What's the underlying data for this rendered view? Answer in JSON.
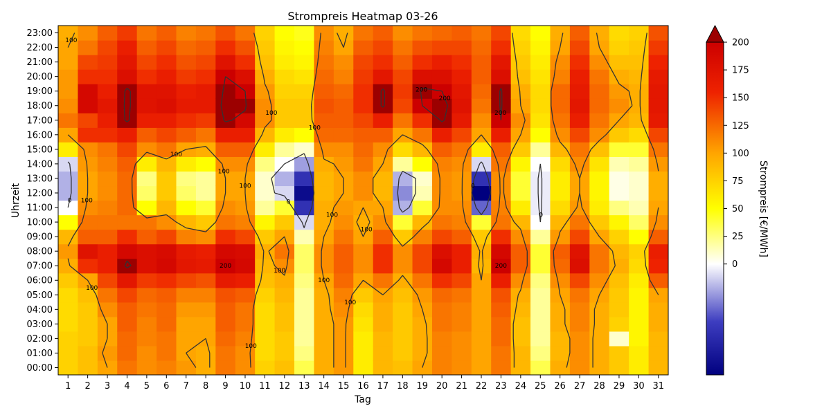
{
  "chart_data": {
    "type": "heatmap",
    "title": "Strompreis Heatmap 03-26",
    "xlabel": "Tag",
    "ylabel": "Uhrzeit",
    "x_categories": [
      "1",
      "2",
      "3",
      "4",
      "5",
      "6",
      "7",
      "8",
      "9",
      "10",
      "11",
      "12",
      "13",
      "14",
      "15",
      "16",
      "17",
      "18",
      "19",
      "20",
      "21",
      "22",
      "23",
      "24",
      "25",
      "26",
      "27",
      "28",
      "29",
      "30",
      "31"
    ],
    "y_tick_labels": [
      "00:00",
      "01:00",
      "02:00",
      "03:00",
      "04:00",
      "05:00",
      "06:00",
      "07:00",
      "08:00",
      "09:00",
      "10:00",
      "11:00",
      "12:00",
      "13:00",
      "14:00",
      "15:00",
      "16:00",
      "17:00",
      "18:00",
      "19:00",
      "20:00",
      "21:00",
      "22:00",
      "23:00"
    ],
    "colorbar": {
      "label": "Strompreis [€/MWh]",
      "ticks": [
        0,
        25,
        50,
        75,
        100,
        125,
        150,
        175,
        200
      ],
      "tick_labels": [
        "0",
        "25",
        "50",
        "75",
        "100",
        "125",
        "150",
        "175",
        "200"
      ],
      "min": -100,
      "max": 200,
      "extend": "max",
      "colors": {
        "low": "#00007f",
        "zero": "#ffffff",
        "mid": "#ffff00",
        "orange": "#ffa500",
        "high": "#cc0000",
        "over": "#9c0000"
      }
    },
    "contour_levels": [
      0,
      100,
      200
    ],
    "contour_label_texts": [
      "100",
      "100",
      "100",
      "100",
      "200",
      "200",
      "200",
      "200",
      "200",
      "200",
      "200",
      "200",
      "200",
      "200",
      "200",
      "200",
      "100",
      "100",
      "100",
      "100",
      "100",
      "100",
      "100",
      "100",
      "100",
      "100",
      "100",
      "100",
      "0",
      "0",
      "0",
      "0",
      "0",
      "0",
      "0",
      "0",
      "0",
      "-0",
      "0",
      "100",
      "100",
      "100"
    ],
    "daily_profiles": {
      "d1": [
        75,
        75,
        75,
        70,
        70,
        70,
        80,
        95,
        105,
        90,
        50,
        0,
        -20,
        -20,
        -10,
        60,
        100,
        120,
        110,
        105,
        105,
        100,
        100,
        95
      ],
      "d2": [
        85,
        85,
        80,
        80,
        80,
        85,
        100,
        150,
        175,
        130,
        120,
        110,
        100,
        100,
        105,
        110,
        150,
        140,
        190,
        190,
        150,
        140,
        120,
        110
      ],
      "d3": [
        100,
        105,
        100,
        100,
        110,
        120,
        140,
        160,
        160,
        130,
        120,
        115,
        110,
        110,
        115,
        120,
        150,
        160,
        170,
        160,
        150,
        145,
        140,
        130
      ],
      "d4": [
        120,
        125,
        125,
        130,
        130,
        140,
        170,
        205,
        190,
        150,
        120,
        125,
        125,
        125,
        130,
        140,
        160,
        205,
        205,
        205,
        180,
        170,
        160,
        145
      ],
      "d5": [
        110,
        110,
        115,
        115,
        120,
        125,
        145,
        180,
        180,
        130,
        120,
        50,
        30,
        25,
        60,
        110,
        130,
        160,
        175,
        175,
        150,
        140,
        130,
        120
      ],
      "d6": [
        115,
        120,
        120,
        125,
        125,
        130,
        150,
        190,
        185,
        140,
        110,
        90,
        80,
        80,
        90,
        120,
        140,
        160,
        180,
        175,
        160,
        150,
        140,
        130
      ],
      "d7": [
        105,
        100,
        100,
        100,
        105,
        115,
        140,
        170,
        165,
        115,
        90,
        50,
        30,
        25,
        60,
        100,
        130,
        150,
        165,
        160,
        145,
        135,
        125,
        115
      ],
      "d8": [
        95,
        95,
        100,
        100,
        105,
        115,
        135,
        165,
        160,
        110,
        80,
        40,
        20,
        20,
        50,
        95,
        120,
        145,
        165,
        165,
        150,
        140,
        130,
        120
      ],
      "d9": [
        120,
        120,
        125,
        130,
        130,
        135,
        165,
        200,
        190,
        150,
        120,
        110,
        100,
        100,
        110,
        130,
        160,
        205,
        210,
        205,
        200,
        175,
        150,
        135
      ],
      "d10": [
        110,
        110,
        115,
        120,
        120,
        130,
        160,
        190,
        185,
        140,
        115,
        105,
        100,
        100,
        110,
        130,
        160,
        190,
        205,
        200,
        180,
        150,
        135,
        120
      ],
      "d11": [
        75,
        70,
        70,
        70,
        70,
        75,
        85,
        90,
        95,
        80,
        55,
        20,
        10,
        10,
        25,
        60,
        90,
        110,
        110,
        105,
        95,
        85,
        80,
        75
      ],
      "d12": [
        85,
        80,
        80,
        85,
        85,
        90,
        95,
        110,
        120,
        100,
        80,
        40,
        -10,
        -20,
        0,
        20,
        60,
        80,
        80,
        75,
        70,
        60,
        55,
        50
      ],
      "d13": [
        35,
        25,
        20,
        20,
        20,
        20,
        25,
        30,
        30,
        15,
        -10,
        -60,
        -90,
        -60,
        -25,
        10,
        50,
        80,
        80,
        75,
        65,
        55,
        50,
        45
      ],
      "d14": [
        95,
        95,
        95,
        95,
        95,
        95,
        100,
        110,
        110,
        100,
        95,
        95,
        90,
        90,
        95,
        110,
        125,
        130,
        135,
        130,
        125,
        120,
        115,
        110
      ],
      "d15": [
        105,
        105,
        105,
        105,
        110,
        115,
        125,
        130,
        130,
        120,
        110,
        105,
        100,
        100,
        105,
        110,
        125,
        130,
        130,
        125,
        115,
        110,
        100,
        95
      ],
      "d16": [
        60,
        60,
        60,
        65,
        70,
        80,
        100,
        110,
        110,
        100,
        95,
        100,
        110,
        110,
        120,
        125,
        130,
        140,
        150,
        150,
        145,
        140,
        130,
        120
      ],
      "d17": [
        90,
        90,
        90,
        95,
        95,
        100,
        120,
        150,
        150,
        130,
        110,
        100,
        90,
        90,
        100,
        110,
        130,
        160,
        205,
        205,
        170,
        150,
        140,
        130
      ],
      "d18": [
        85,
        80,
        80,
        80,
        80,
        85,
        95,
        110,
        110,
        80,
        40,
        -20,
        -30,
        -20,
        20,
        70,
        100,
        120,
        140,
        145,
        140,
        130,
        120,
        110
      ],
      "d19": [
        100,
        95,
        95,
        95,
        100,
        105,
        120,
        140,
        140,
        115,
        90,
        40,
        15,
        10,
        50,
        90,
        120,
        150,
        200,
        205,
        180,
        150,
        135,
        120
      ],
      "d20": [
        115,
        115,
        115,
        120,
        120,
        125,
        150,
        190,
        180,
        140,
        120,
        110,
        110,
        110,
        115,
        130,
        160,
        205,
        210,
        200,
        180,
        160,
        140,
        125
      ],
      "d21": [
        110,
        110,
        110,
        115,
        115,
        120,
        140,
        160,
        160,
        130,
        115,
        110,
        105,
        105,
        110,
        120,
        140,
        165,
        175,
        170,
        160,
        150,
        140,
        130
      ],
      "d22": [
        100,
        100,
        100,
        100,
        100,
        100,
        100,
        90,
        95,
        80,
        40,
        -40,
        -100,
        -60,
        -10,
        60,
        100,
        110,
        120,
        125,
        130,
        130,
        125,
        120
      ],
      "d23": [
        120,
        120,
        125,
        125,
        130,
        135,
        160,
        200,
        190,
        150,
        120,
        115,
        110,
        110,
        120,
        130,
        160,
        200,
        205,
        205,
        180,
        170,
        150,
        140
      ],
      "d24": [
        90,
        90,
        85,
        85,
        90,
        95,
        110,
        130,
        130,
        110,
        90,
        60,
        40,
        40,
        55,
        80,
        100,
        110,
        100,
        95,
        85,
        80,
        75,
        70
      ],
      "d25": [
        35,
        25,
        20,
        20,
        20,
        20,
        25,
        40,
        40,
        20,
        0,
        -5,
        -5,
        -5,
        0,
        20,
        50,
        65,
        70,
        70,
        65,
        60,
        55,
        50
      ],
      "d26": [
        95,
        90,
        90,
        95,
        95,
        100,
        110,
        125,
        130,
        105,
        90,
        70,
        60,
        60,
        70,
        90,
        110,
        120,
        125,
        125,
        115,
        110,
        100,
        95
      ],
      "d27": [
        110,
        110,
        110,
        115,
        115,
        120,
        140,
        180,
        175,
        140,
        120,
        105,
        100,
        100,
        110,
        120,
        140,
        160,
        170,
        165,
        160,
        150,
        140,
        130
      ],
      "d28": [
        95,
        95,
        95,
        95,
        95,
        100,
        110,
        120,
        120,
        100,
        80,
        60,
        55,
        55,
        65,
        85,
        110,
        120,
        125,
        125,
        120,
        110,
        100,
        95
      ],
      "d29": [
        80,
        80,
        10,
        75,
        80,
        80,
        85,
        95,
        90,
        75,
        55,
        25,
        5,
        5,
        15,
        40,
        80,
        100,
        110,
        105,
        95,
        85,
        75,
        70
      ],
      "d30": [
        60,
        60,
        55,
        55,
        55,
        55,
        60,
        70,
        75,
        50,
        30,
        15,
        10,
        10,
        20,
        40,
        70,
        90,
        95,
        95,
        90,
        85,
        80,
        75
      ],
      "d31": [
        90,
        90,
        90,
        95,
        95,
        100,
        130,
        155,
        160,
        130,
        110,
        100,
        95,
        95,
        105,
        120,
        140,
        165,
        170,
        170,
        165,
        155,
        145,
        135
      ]
    }
  }
}
